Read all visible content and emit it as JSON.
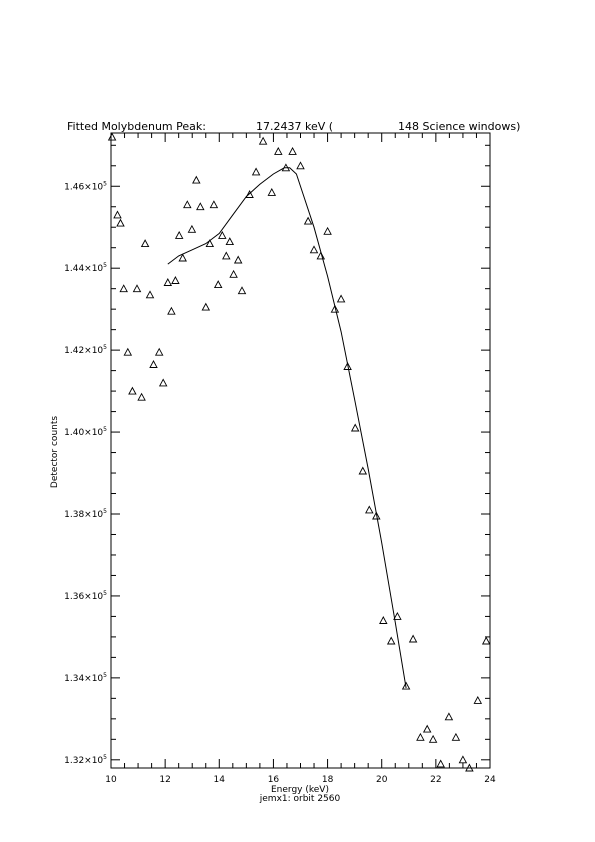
{
  "chart_data": {
    "type": "scatter",
    "title": {
      "part1": "Fitted Molybdenum Peak:",
      "part2": "17.2437 keV (",
      "part3": "148 Science windows)"
    },
    "xlabel": "Energy (keV)",
    "ylabel": "Detector counts",
    "subtitle": "jemx1: orbit 2560",
    "xlim": [
      10,
      24
    ],
    "ylim": [
      131800,
      147300
    ],
    "x_ticks": [
      {
        "value": 10,
        "label": "10"
      },
      {
        "value": 12,
        "label": "12"
      },
      {
        "value": 14,
        "label": "14"
      },
      {
        "value": 16,
        "label": "16"
      },
      {
        "value": 18,
        "label": "18"
      },
      {
        "value": 20,
        "label": "20"
      },
      {
        "value": 22,
        "label": "22"
      },
      {
        "value": 24,
        "label": "24"
      }
    ],
    "y_ticks": [
      {
        "value": 132000,
        "mantissa": "1.32×10",
        "exp": "5"
      },
      {
        "value": 134000,
        "mantissa": "1.34×10",
        "exp": "5"
      },
      {
        "value": 136000,
        "mantissa": "1.36×10",
        "exp": "5"
      },
      {
        "value": 138000,
        "mantissa": "1.38×10",
        "exp": "5"
      },
      {
        "value": 140000,
        "mantissa": "1.40×10",
        "exp": "5"
      },
      {
        "value": 142000,
        "mantissa": "1.42×10",
        "exp": "5"
      },
      {
        "value": 144000,
        "mantissa": "1.44×10",
        "exp": "5"
      },
      {
        "value": 146000,
        "mantissa": "1.46×10",
        "exp": "5"
      }
    ],
    "grid": false,
    "series": [
      {
        "marker": "triangle",
        "points": [
          [
            10.04,
            147200
          ],
          [
            10.24,
            145300
          ],
          [
            10.35,
            145100
          ],
          [
            10.47,
            143500
          ],
          [
            10.62,
            141950
          ],
          [
            10.79,
            141000
          ],
          [
            10.96,
            143500
          ],
          [
            11.13,
            140850
          ],
          [
            11.26,
            144600
          ],
          [
            11.44,
            143350
          ],
          [
            11.57,
            141650
          ],
          [
            11.78,
            141950
          ],
          [
            11.93,
            141200
          ],
          [
            12.1,
            143650
          ],
          [
            12.23,
            142950
          ],
          [
            12.38,
            143700
          ],
          [
            12.52,
            144800
          ],
          [
            12.65,
            144250
          ],
          [
            12.82,
            145550
          ],
          [
            12.99,
            144950
          ],
          [
            13.15,
            146150
          ],
          [
            13.3,
            145500
          ],
          [
            13.5,
            143050
          ],
          [
            13.65,
            144600
          ],
          [
            13.8,
            145550
          ],
          [
            13.96,
            143600
          ],
          [
            14.11,
            144800
          ],
          [
            14.26,
            144300
          ],
          [
            14.39,
            144650
          ],
          [
            14.53,
            143850
          ],
          [
            14.7,
            144200
          ],
          [
            14.84,
            143450
          ],
          [
            15.12,
            145800
          ],
          [
            15.36,
            146350
          ],
          [
            15.62,
            147100
          ],
          [
            15.94,
            145850
          ],
          [
            16.18,
            146850
          ],
          [
            16.46,
            146450
          ],
          [
            16.71,
            146850
          ],
          [
            17.0,
            146500
          ],
          [
            17.28,
            145150
          ],
          [
            17.5,
            144450
          ],
          [
            17.75,
            144300
          ],
          [
            18.0,
            144900
          ],
          [
            18.27,
            143000
          ],
          [
            18.5,
            143250
          ],
          [
            18.74,
            141600
          ],
          [
            19.02,
            140100
          ],
          [
            19.3,
            139050
          ],
          [
            19.54,
            138100
          ],
          [
            19.8,
            137950
          ],
          [
            20.06,
            135400
          ],
          [
            20.35,
            134900
          ],
          [
            20.58,
            135500
          ],
          [
            20.9,
            133800
          ],
          [
            21.16,
            134950
          ],
          [
            21.43,
            132550
          ],
          [
            21.68,
            132750
          ],
          [
            21.9,
            132500
          ],
          [
            22.18,
            131900
          ],
          [
            22.48,
            133050
          ],
          [
            22.74,
            132550
          ],
          [
            23.0,
            132000
          ],
          [
            23.24,
            131800
          ],
          [
            23.55,
            133450
          ],
          [
            23.86,
            134900
          ]
        ]
      },
      {
        "type": "line",
        "points": [
          [
            12.1,
            144100
          ],
          [
            12.5,
            144300
          ],
          [
            13.0,
            144450
          ],
          [
            13.5,
            144600
          ],
          [
            14.0,
            144850
          ],
          [
            14.5,
            145300
          ],
          [
            15.0,
            145750
          ],
          [
            15.5,
            146050
          ],
          [
            16.0,
            146300
          ],
          [
            16.4,
            146450
          ],
          [
            16.6,
            146450
          ],
          [
            16.85,
            146300
          ],
          [
            17.1,
            145800
          ],
          [
            17.5,
            145000
          ],
          [
            18.0,
            143800
          ],
          [
            18.5,
            142450
          ],
          [
            19.0,
            140800
          ],
          [
            19.5,
            139100
          ],
          [
            20.0,
            137300
          ],
          [
            20.5,
            135350
          ],
          [
            20.9,
            133750
          ]
        ]
      }
    ]
  }
}
